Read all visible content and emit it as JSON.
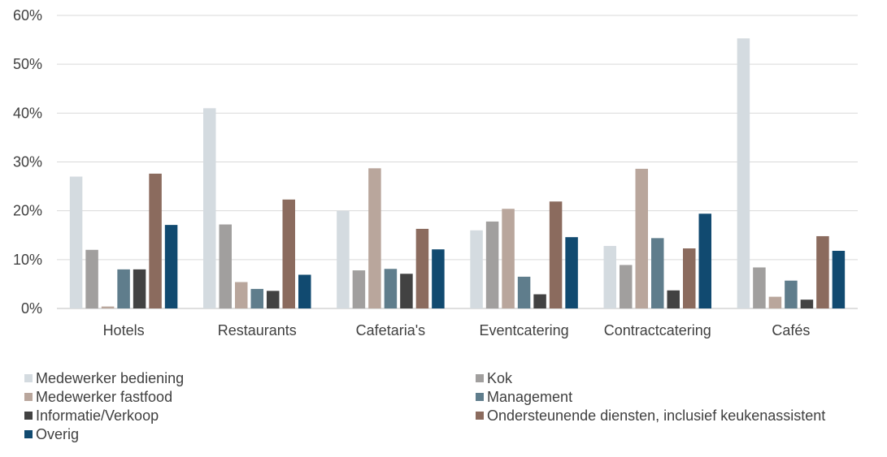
{
  "chart_data": {
    "type": "bar",
    "categories": [
      "Hotels",
      "Restaurants",
      "Cafetaria's",
      "Eventcatering",
      "Contractcatering",
      "Cafés"
    ],
    "series": [
      {
        "name": "Medewerker bediening",
        "color": "#d4dbe0",
        "values": [
          27,
          41,
          20,
          16,
          12.8,
          55.3
        ]
      },
      {
        "name": "Kok",
        "color": "#a19f9e",
        "values": [
          12,
          17.2,
          7.8,
          17.8,
          8.9,
          8.4
        ]
      },
      {
        "name": "Medewerker fastfood",
        "color": "#b9a69c",
        "values": [
          0.4,
          5.4,
          28.7,
          20.4,
          28.6,
          2.4
        ]
      },
      {
        "name": "Management",
        "color": "#5f7d8c",
        "values": [
          8,
          4,
          8.1,
          6.5,
          14.4,
          5.7
        ]
      },
      {
        "name": "Informatie/Verkoop",
        "color": "#424242",
        "values": [
          8,
          3.6,
          7.1,
          2.9,
          3.7,
          1.8
        ]
      },
      {
        "name": "Ondersteunende diensten, inclusief keukenassistent",
        "color": "#8b6b5e",
        "values": [
          27.6,
          22.3,
          16.3,
          21.9,
          12.3,
          14.8
        ]
      },
      {
        "name": "Overig",
        "color": "#114a70",
        "values": [
          17.1,
          6.9,
          12.1,
          14.6,
          19.4,
          11.8
        ]
      }
    ],
    "yticks": [
      "0%",
      "10%",
      "20%",
      "30%",
      "40%",
      "50%",
      "60%"
    ],
    "ylim": [
      0,
      60
    ],
    "grid": true,
    "legend_position": "bottom"
  }
}
